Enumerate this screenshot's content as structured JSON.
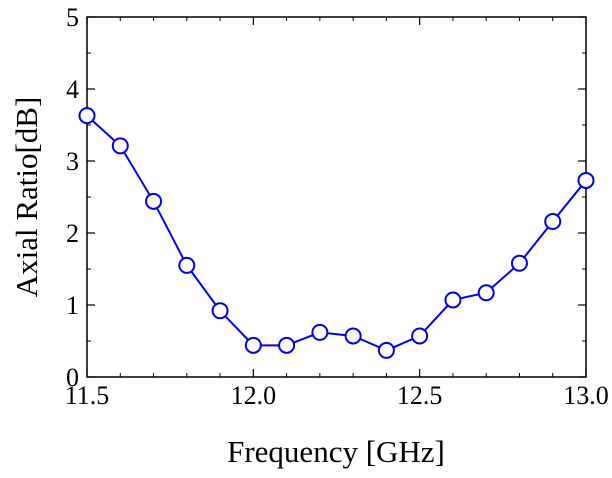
{
  "chart_data": {
    "type": "line",
    "title": "",
    "xlabel": "Frequency [GHz]",
    "ylabel": "Axial Ratio[dB]",
    "xlim": [
      11.5,
      13.0
    ],
    "ylim": [
      0,
      5
    ],
    "x_ticks": [
      "11.5",
      "12.0",
      "12.5",
      "13.0"
    ],
    "y_ticks": [
      "0",
      "1",
      "2",
      "3",
      "4",
      "5"
    ],
    "grid": false,
    "legend": "none",
    "series": [
      {
        "color": "#0000ee",
        "marker": "open-circle",
        "x": [
          11.5,
          11.6,
          11.7,
          11.8,
          11.9,
          12.0,
          12.1,
          12.2,
          12.3,
          12.4,
          12.5,
          12.6,
          12.7,
          12.8,
          12.9,
          13.0
        ],
        "y": [
          3.63,
          3.21,
          2.44,
          1.55,
          0.92,
          0.44,
          0.44,
          0.62,
          0.57,
          0.37,
          0.57,
          1.07,
          1.17,
          1.58,
          2.16,
          2.73
        ]
      }
    ]
  }
}
